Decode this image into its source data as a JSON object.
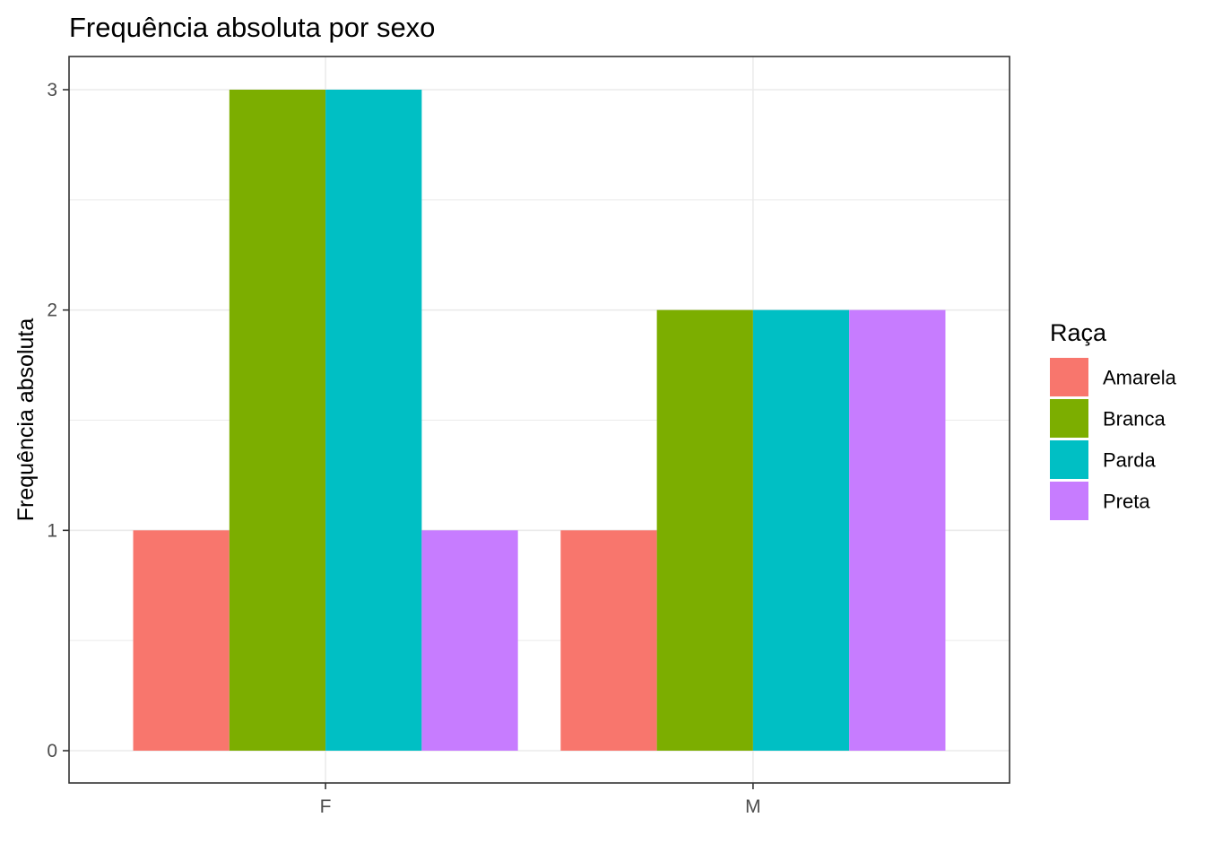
{
  "chart_data": {
    "type": "bar",
    "title": "Frequência absoluta por sexo",
    "xlabel": "",
    "ylabel": "Frequência absoluta",
    "categories": [
      "F",
      "M"
    ],
    "ylim": [
      0,
      3
    ],
    "yticks": [
      0,
      1,
      2,
      3
    ],
    "grid": true,
    "legend": {
      "title": "Raça",
      "placement": "right"
    },
    "series": [
      {
        "name": "Amarela",
        "color": "#F8766D",
        "values": [
          1,
          1
        ]
      },
      {
        "name": "Branca",
        "color": "#7CAE00",
        "values": [
          3,
          2
        ]
      },
      {
        "name": "Parda",
        "color": "#00BFC4",
        "values": [
          3,
          2
        ]
      },
      {
        "name": "Preta",
        "color": "#C77CFF",
        "values": [
          1,
          2
        ]
      }
    ]
  }
}
